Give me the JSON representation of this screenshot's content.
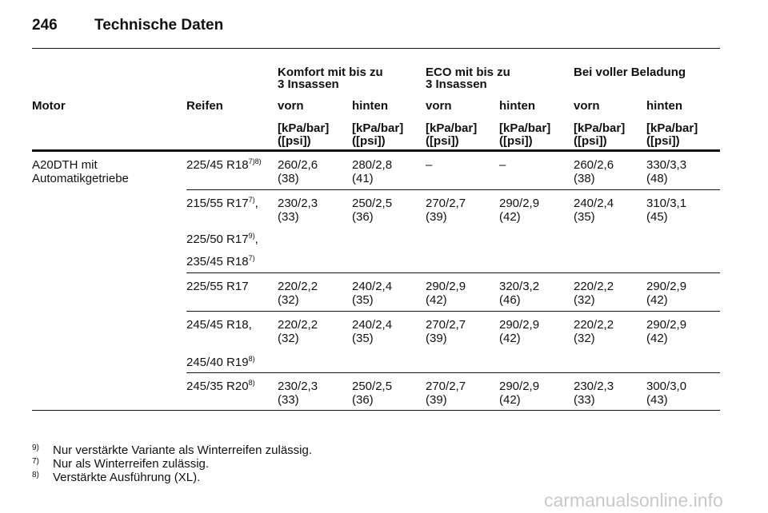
{
  "header": {
    "page": "246",
    "title": "Technische Daten"
  },
  "table": {
    "group_headers": [
      [
        "Komfort mit bis zu",
        "3 Insassen"
      ],
      [
        "ECO mit bis zu",
        "3 Insassen"
      ],
      [
        "Bei voller Beladung"
      ]
    ],
    "col_headers": [
      "Motor",
      "Reifen",
      "vorn",
      "hinten",
      "vorn",
      "hinten",
      "vorn",
      "hinten"
    ],
    "unit_headers": [
      [
        "[kPa/bar]",
        "([psi])"
      ],
      [
        "[kPa/bar]",
        "([psi])"
      ],
      [
        "[kPa/bar]",
        "([psi])"
      ],
      [
        "[kPa/bar]",
        "([psi])"
      ],
      [
        "[kPa/bar]",
        "([psi])"
      ],
      [
        "[kPa/bar]",
        "([psi])"
      ]
    ],
    "rows": [
      {
        "motor": [
          "A20DTH mit",
          "Automatikgetriebe"
        ],
        "tires": [
          {
            "text": "225/45 R18",
            "sup": "7)8)"
          }
        ],
        "values": [
          [
            "260/2,6",
            "(38)"
          ],
          [
            "280/2,8",
            "(41)"
          ],
          [
            "–"
          ],
          [
            "–"
          ],
          [
            "260/2,6",
            "(38)"
          ],
          [
            "330/3,3",
            "(48)"
          ]
        ]
      },
      {
        "tires": [
          {
            "text": "215/55 R17",
            "sup": "7)",
            "suffix": ","
          },
          {
            "text": "225/50 R17",
            "sup": "9)",
            "suffix": ","
          },
          {
            "text": "235/45 R18",
            "sup": "7)"
          }
        ],
        "values": [
          [
            "230/2,3",
            "(33)"
          ],
          [
            "250/2,5",
            "(36)"
          ],
          [
            "270/2,7",
            "(39)"
          ],
          [
            "290/2,9",
            "(42)"
          ],
          [
            "240/2,4",
            "(35)"
          ],
          [
            "310/3,1",
            "(45)"
          ]
        ]
      },
      {
        "tires": [
          {
            "text": "225/55 R17"
          }
        ],
        "values": [
          [
            "220/2,2",
            "(32)"
          ],
          [
            "240/2,4",
            "(35)"
          ],
          [
            "290/2,9",
            "(42)"
          ],
          [
            "320/3,2",
            "(46)"
          ],
          [
            "220/2,2",
            "(32)"
          ],
          [
            "290/2,9",
            "(42)"
          ]
        ]
      },
      {
        "tires": [
          {
            "text": "245/45 R18,"
          },
          {
            "text": "245/40 R19",
            "sup": "8)"
          }
        ],
        "values": [
          [
            "220/2,2",
            "(32)"
          ],
          [
            "240/2,4",
            "(35)"
          ],
          [
            "270/2,7",
            "(39)"
          ],
          [
            "290/2,9",
            "(42)"
          ],
          [
            "220/2,2",
            "(32)"
          ],
          [
            "290/2,9",
            "(42)"
          ]
        ]
      },
      {
        "tires": [
          {
            "text": "245/35 R20",
            "sup": "8)"
          }
        ],
        "values": [
          [
            "230/2,3",
            "(33)"
          ],
          [
            "250/2,5",
            "(36)"
          ],
          [
            "270/2,7",
            "(39)"
          ],
          [
            "290/2,9",
            "(42)"
          ],
          [
            "230/2,3",
            "(33)"
          ],
          [
            "300/3,0",
            "(43)"
          ]
        ]
      }
    ]
  },
  "footnotes": [
    {
      "mark": "9)",
      "text": "Nur verstärkte Variante als Winterreifen zulässig."
    },
    {
      "mark": "7)",
      "text": "Nur als Winterreifen zulässig."
    },
    {
      "mark": "8)",
      "text": "Verstärkte Ausführung (XL)."
    }
  ],
  "watermark": "carmanualsonline.info"
}
